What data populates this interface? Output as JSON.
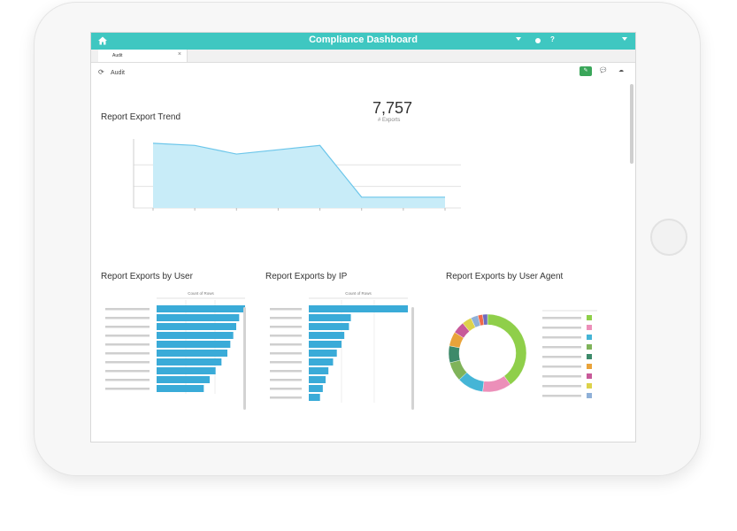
{
  "app": {
    "title": "Compliance Dashboard",
    "user_menu": "",
    "app_menu": "",
    "help": "?"
  },
  "tabs": [
    {
      "label": "Audit",
      "close": "×"
    }
  ],
  "page": {
    "breadcrumb": "Audit",
    "refresh_icon": "refresh-icon"
  },
  "colors": {
    "accent": "#3fc7c1",
    "bar": "#3aabd8",
    "area_fill": "#c8ecf8",
    "area_line": "#6cc6ea"
  },
  "kpi": {
    "value": "7,757",
    "label": "# Exports"
  },
  "sections": {
    "trend": "Report Export Trend",
    "by_user": "Report Exports by User",
    "by_ip": "Report Exports by IP",
    "by_agent": "Report Exports by User Agent"
  },
  "chart_data": [
    {
      "type": "area",
      "title": "Report Export Trend",
      "x": [
        0,
        1,
        2,
        3,
        4,
        5,
        6,
        7
      ],
      "values": [
        30,
        29,
        25,
        27,
        29,
        5,
        5,
        5
      ],
      "ylim": [
        0,
        32
      ],
      "yticks": [
        0,
        10,
        20
      ],
      "grid": true
    },
    {
      "type": "bar",
      "title": "Report Exports by User",
      "orientation": "horizontal",
      "xlabel": "Count of Rows",
      "values": [
        30,
        28,
        27,
        26,
        25,
        24,
        22,
        20,
        18,
        16
      ]
    },
    {
      "type": "bar",
      "title": "Report Exports by IP",
      "orientation": "horizontal",
      "xlabel": "Count of Rows",
      "values": [
        2120,
        900,
        860,
        760,
        700,
        600,
        520,
        420,
        360,
        300,
        240
      ]
    },
    {
      "type": "pie",
      "title": "Report Exports by User Agent",
      "donut": true,
      "values": [
        40,
        12,
        11,
        8,
        7,
        6,
        5,
        4,
        3,
        2,
        2
      ],
      "colors": [
        "#8fcf4a",
        "#ec8fb9",
        "#45b5d6",
        "#7fb35a",
        "#3d8a6a",
        "#e9a33a",
        "#c85a9a",
        "#ddd24a",
        "#8fb0d8",
        "#f06a4a",
        "#6e6bbd"
      ],
      "legend_placement": "right"
    }
  ]
}
